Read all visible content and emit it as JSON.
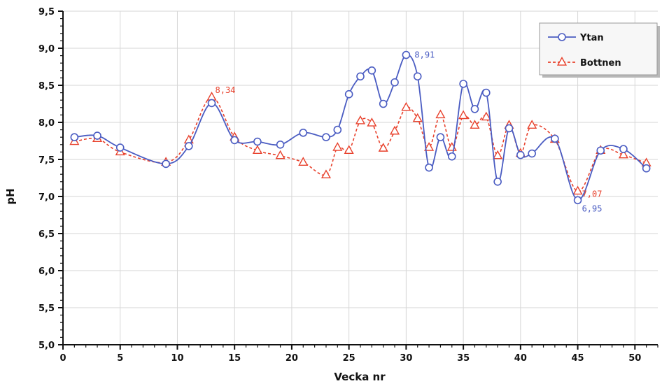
{
  "chart_data": {
    "type": "line",
    "xlabel": "Vecka nr",
    "ylabel": "pH",
    "xlim": [
      0,
      52
    ],
    "ylim": [
      5.0,
      9.5
    ],
    "x_ticks": [
      0,
      5,
      10,
      15,
      20,
      25,
      30,
      35,
      40,
      45,
      50
    ],
    "x_tick_labels": [
      "0",
      "5",
      "10",
      "15",
      "20",
      "25",
      "30",
      "35",
      "40",
      "45",
      "50"
    ],
    "y_ticks": [
      5.0,
      5.5,
      6.0,
      6.5,
      7.0,
      7.5,
      8.0,
      8.5,
      9.0,
      9.5
    ],
    "y_tick_labels": [
      "5,0",
      "5,5",
      "6,0",
      "6,5",
      "7,0",
      "7,5",
      "8,0",
      "8,5",
      "9,0",
      "9,5"
    ],
    "grid": true,
    "legend_position": "top-right",
    "series": [
      {
        "name": "Ytan",
        "color": "#4a5cc2",
        "marker": "circle",
        "line_style": "solid",
        "x": [
          1,
          3,
          5,
          9,
          11,
          13,
          15,
          17,
          19,
          21,
          23,
          24,
          25,
          26,
          27,
          28,
          29,
          30,
          31,
          32,
          33,
          34,
          35,
          36,
          37,
          38,
          39,
          40,
          41,
          43,
          45,
          47,
          49,
          51
        ],
        "values": [
          7.8,
          7.82,
          7.66,
          7.44,
          7.68,
          8.26,
          7.76,
          7.74,
          7.7,
          7.86,
          7.8,
          7.9,
          8.38,
          8.62,
          8.7,
          8.25,
          8.54,
          8.91,
          8.62,
          7.39,
          7.8,
          7.54,
          8.52,
          8.18,
          8.4,
          7.2,
          7.92,
          7.56,
          7.58,
          7.78,
          6.95,
          7.62,
          7.64,
          7.38
        ]
      },
      {
        "name": "Bottnen",
        "color": "#e8412c",
        "marker": "triangle",
        "line_style": "dashed",
        "x": [
          1,
          3,
          5,
          9,
          11,
          13,
          15,
          17,
          19,
          21,
          23,
          24,
          25,
          26,
          27,
          28,
          29,
          30,
          31,
          32,
          33,
          34,
          35,
          36,
          37,
          38,
          39,
          40,
          41,
          43,
          45,
          47,
          49,
          51
        ],
        "values": [
          7.74,
          7.78,
          7.6,
          7.46,
          7.76,
          8.34,
          7.8,
          7.62,
          7.55,
          7.46,
          7.29,
          7.66,
          7.62,
          8.02,
          7.99,
          7.65,
          7.88,
          8.2,
          8.05,
          7.66,
          8.1,
          7.66,
          8.09,
          7.96,
          8.07,
          7.55,
          7.96,
          7.58,
          7.96,
          7.77,
          7.07,
          7.62,
          7.56,
          7.45
        ]
      }
    ],
    "annotations": [
      {
        "text": "8,34",
        "x": 13,
        "y": 8.34,
        "series": "Bottnen"
      },
      {
        "text": "8,91",
        "x": 30,
        "y": 8.91,
        "series": "Ytan"
      },
      {
        "text": "7,07",
        "x": 45,
        "y": 7.07,
        "series": "Bottnen"
      },
      {
        "text": "6,95",
        "x": 45,
        "y": 6.95,
        "series": "Ytan"
      }
    ]
  }
}
